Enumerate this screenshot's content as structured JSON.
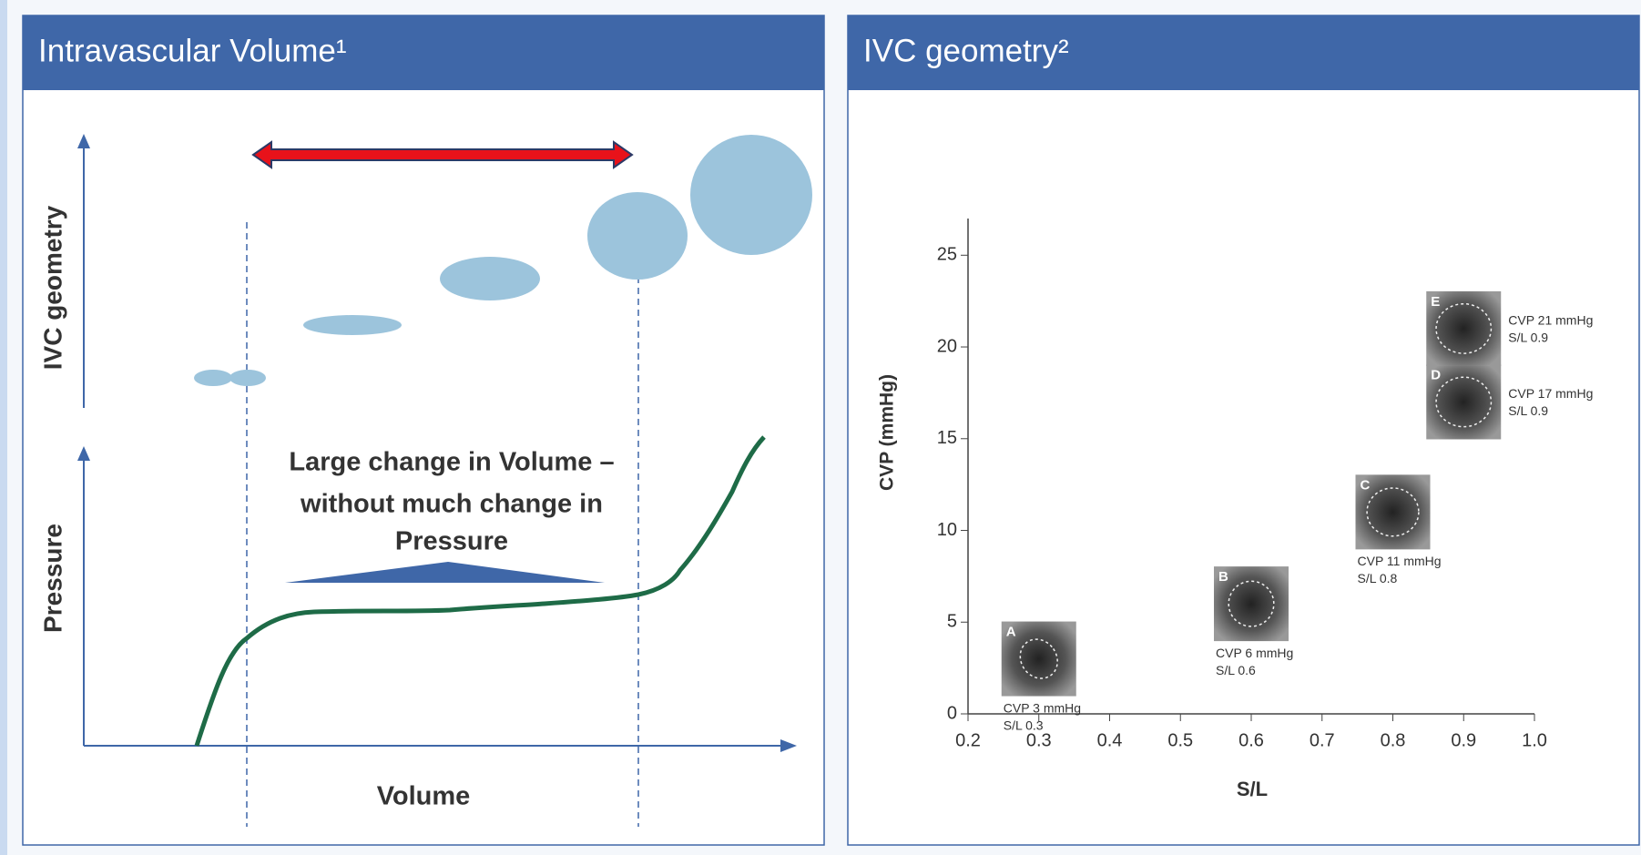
{
  "left_panel": {
    "title": "Intravascular Volume¹",
    "y_label_top": "IVC geometry",
    "y_label_bottom": "Pressure",
    "x_label": "Volume",
    "annotation": [
      "Large change in Volume –",
      "without much change in",
      "Pressure"
    ]
  },
  "chart_data": {
    "type": "scatter",
    "title": "IVC geometry²",
    "x_label": "S/L",
    "y_label": "CVP (mmHg)",
    "x": [
      0.3,
      0.6,
      0.8,
      0.9,
      0.9
    ],
    "values": [
      3,
      6,
      11,
      17,
      21
    ],
    "point_letters": [
      "A",
      "B",
      "C",
      "D",
      "E"
    ],
    "point_labels": [
      [
        "CVP 3 mmHg",
        "S/L 0.3"
      ],
      [
        "CVP 6 mmHg",
        "S/L 0.6"
      ],
      [
        "CVP 11 mmHg",
        "S/L 0.8"
      ],
      [
        "CVP 17 mmHg",
        "S/L 0.9"
      ],
      [
        "CVP 21 mmHg",
        "S/L 0.9"
      ]
    ],
    "xlim": [
      0.2,
      1.0
    ],
    "ylim": [
      0,
      27
    ],
    "xticks": [
      0.2,
      0.3,
      0.4,
      0.5,
      0.6,
      0.7,
      0.8,
      0.9,
      {
        "value": 1,
        "label": "1.0"
      }
    ],
    "yticks": [
      0,
      5,
      10,
      15,
      20,
      25
    ]
  }
}
